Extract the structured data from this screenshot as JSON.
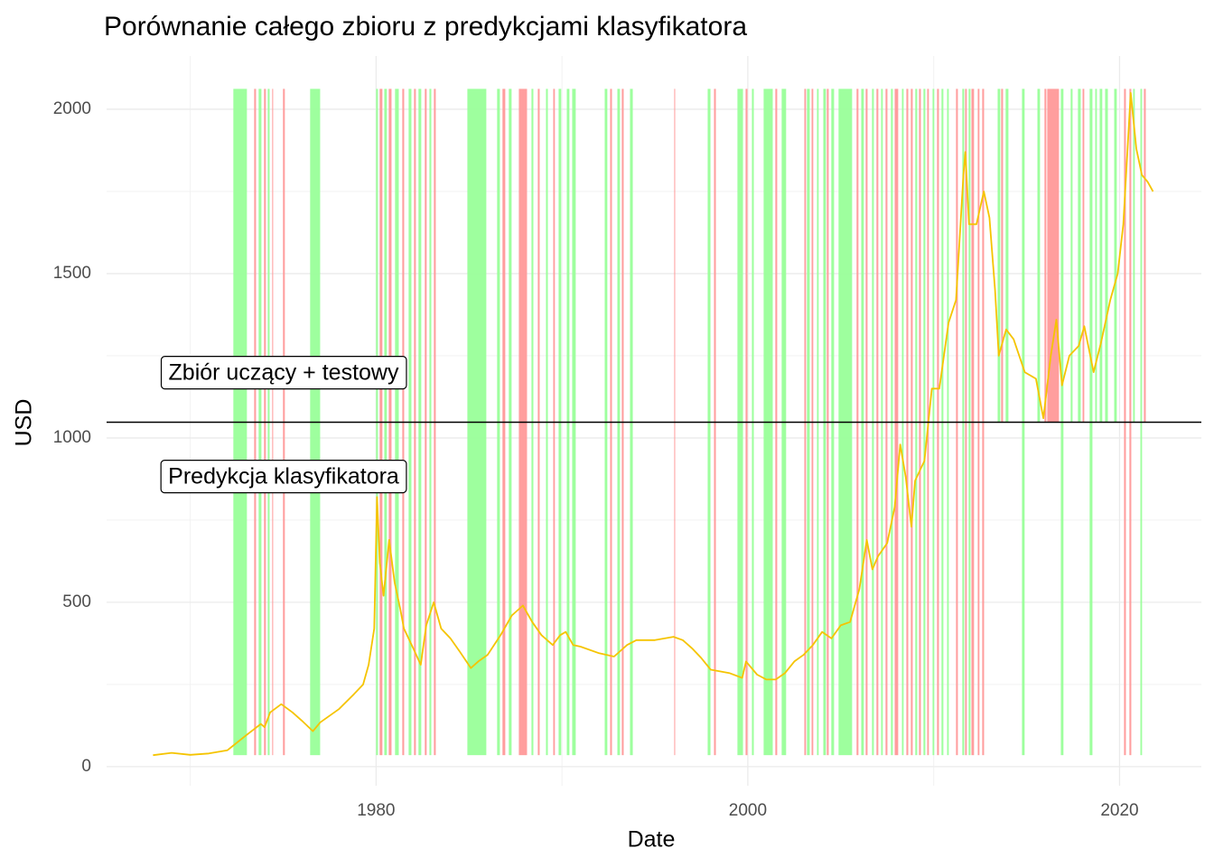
{
  "chart_data": {
    "type": "line",
    "title": "Porównanie całego zbioru z predykcjami klasyfikatora",
    "x_label": "Date",
    "y_label": "USD",
    "annotations": [
      "Zbiór uczący + testowy",
      "Predykcja klasyfikatora"
    ],
    "xlim": [
      1965.5,
      2024.4
    ],
    "xticks": [
      1980,
      2000,
      2020
    ],
    "xminor": [
      1970,
      1990,
      2010
    ],
    "ylim": [
      -58,
      2162
    ],
    "yticks": [
      0,
      500,
      1000,
      1500,
      2000
    ],
    "yminor": [
      250,
      750,
      1250,
      1750
    ],
    "grid": true,
    "hline": 1048,
    "band_top": 2062,
    "band_bottom": 35,
    "series": [
      {
        "color": "#f5c400",
        "x": [
          1968.0,
          1969.0,
          1970.0,
          1971.0,
          1972.0,
          1973.0,
          1973.8,
          1974.0,
          1974.3,
          1974.9,
          1975.5,
          1976.0,
          1976.6,
          1977.0,
          1978.0,
          1978.8,
          1979.3,
          1979.6,
          1979.9,
          1980.05,
          1980.2,
          1980.4,
          1980.7,
          1981.0,
          1981.3,
          1981.5,
          1982.0,
          1982.4,
          1982.7,
          1983.1,
          1983.5,
          1984.0,
          1984.5,
          1985.1,
          1985.5,
          1986.0,
          1986.7,
          1987.3,
          1987.9,
          1988.4,
          1988.9,
          1989.5,
          1989.9,
          1990.2,
          1990.6,
          1991.0,
          1992.0,
          1992.8,
          1993.5,
          1994.0,
          1995.0,
          1996.0,
          1996.5,
          1997.0,
          1997.5,
          1998.0,
          1999.0,
          1999.7,
          1999.9,
          2000.5,
          2001.0,
          2001.5,
          2002.0,
          2002.5,
          2003.0,
          2003.5,
          2004.0,
          2004.5,
          2005.0,
          2005.5,
          2006.0,
          2006.4,
          2006.7,
          2007.0,
          2007.5,
          2007.9,
          2008.2,
          2008.5,
          2008.8,
          2009.0,
          2009.5,
          2009.9,
          2010.3,
          2010.8,
          2011.2,
          2011.6,
          2011.7,
          2011.9,
          2012.3,
          2012.7,
          2013.0,
          2013.3,
          2013.5,
          2013.9,
          2014.3,
          2014.9,
          2015.5,
          2015.9,
          2016.3,
          2016.6,
          2016.9,
          2017.3,
          2017.8,
          2018.1,
          2018.6,
          2019.0,
          2019.5,
          2019.9,
          2020.2,
          2020.6,
          2020.9,
          2021.2,
          2021.5,
          2021.8
        ],
        "values": [
          35,
          42,
          36,
          40,
          50,
          95,
          130,
          120,
          165,
          190,
          165,
          140,
          108,
          135,
          175,
          220,
          250,
          310,
          420,
          820,
          620,
          520,
          690,
          560,
          480,
          420,
          360,
          310,
          430,
          500,
          420,
          390,
          350,
          300,
          320,
          340,
          400,
          460,
          490,
          440,
          400,
          370,
          400,
          410,
          370,
          365,
          345,
          335,
          370,
          385,
          385,
          395,
          385,
          360,
          330,
          295,
          285,
          270,
          320,
          280,
          265,
          265,
          285,
          320,
          340,
          370,
          410,
          390,
          430,
          440,
          540,
          690,
          600,
          640,
          680,
          790,
          980,
          880,
          730,
          870,
          930,
          1150,
          1150,
          1350,
          1420,
          1800,
          1870,
          1650,
          1650,
          1750,
          1670,
          1450,
          1250,
          1330,
          1300,
          1200,
          1180,
          1060,
          1250,
          1360,
          1160,
          1250,
          1280,
          1340,
          1200,
          1290,
          1420,
          1500,
          1650,
          2050,
          1880,
          1800,
          1780,
          1750
        ]
      }
    ],
    "bands": [
      [
        1972.32,
        1973.05,
        "#99ff99",
        true
      ],
      [
        1973.44,
        1973.54,
        "#ff9999",
        true
      ],
      [
        1973.68,
        1973.83,
        "#99ff99",
        true
      ],
      [
        1973.97,
        1974.07,
        "#ff9999",
        true
      ],
      [
        1974.17,
        1974.27,
        "#99ff99",
        true
      ],
      [
        1974.41,
        1974.46,
        "#ff9999",
        true
      ],
      [
        1974.99,
        1975.09,
        "#ff9999",
        true
      ],
      [
        1976.45,
        1976.99,
        "#99ff99",
        true
      ],
      [
        1980.0,
        1980.1,
        "#99ff99",
        true
      ],
      [
        1980.19,
        1980.34,
        "#ff9999",
        true
      ],
      [
        1980.44,
        1980.58,
        "#99ff99",
        true
      ],
      [
        1980.68,
        1980.83,
        "#ff9999",
        true
      ],
      [
        1981.02,
        1981.22,
        "#99ff99",
        true
      ],
      [
        1981.41,
        1981.51,
        "#ff9999",
        true
      ],
      [
        1981.75,
        1981.9,
        "#99ff99",
        true
      ],
      [
        1982.04,
        1982.14,
        "#ff9999",
        true
      ],
      [
        1982.28,
        1982.43,
        "#99ff99",
        true
      ],
      [
        1982.62,
        1982.72,
        "#ff9999",
        true
      ],
      [
        1982.87,
        1982.97,
        "#99ff99",
        true
      ],
      [
        1983.11,
        1983.21,
        "#ff9999",
        true
      ],
      [
        1984.91,
        1985.93,
        "#99ff99",
        true
      ],
      [
        1986.51,
        1986.66,
        "#99ff99",
        true
      ],
      [
        1986.8,
        1986.95,
        "#ff9999",
        true
      ],
      [
        1987.14,
        1987.29,
        "#99ff99",
        true
      ],
      [
        1987.68,
        1988.12,
        "#ff9999",
        true
      ],
      [
        1988.36,
        1988.46,
        "#99ff99",
        true
      ],
      [
        1988.7,
        1988.8,
        "#ff9999",
        true
      ],
      [
        1989.14,
        1989.24,
        "#99ff99",
        true
      ],
      [
        1989.53,
        1989.62,
        "#ff9999",
        true
      ],
      [
        1989.82,
        1989.96,
        "#99ff99",
        true
      ],
      [
        1990.26,
        1990.4,
        "#99ff99",
        true
      ],
      [
        1990.55,
        1990.74,
        "#99ff99",
        true
      ],
      [
        1992.3,
        1992.44,
        "#99ff99",
        true
      ],
      [
        1992.59,
        1992.69,
        "#ff9999",
        true
      ],
      [
        1992.98,
        1993.12,
        "#99ff99",
        true
      ],
      [
        1993.22,
        1993.32,
        "#ff9999",
        true
      ],
      [
        1993.66,
        1993.81,
        "#99ff99",
        true
      ],
      [
        1996.04,
        1996.09,
        "#ff9999",
        true
      ],
      [
        1997.84,
        1997.99,
        "#99ff99",
        true
      ],
      [
        1998.18,
        1998.28,
        "#ff9999",
        true
      ],
      [
        1999.44,
        1999.74,
        "#99ff99",
        true
      ],
      [
        1999.88,
        1999.98,
        "#ff9999",
        true
      ],
      [
        2000.22,
        2000.32,
        "#99ff99",
        true
      ],
      [
        2000.85,
        2001.34,
        "#99ff99",
        true
      ],
      [
        2001.48,
        2001.58,
        "#ff9999",
        true
      ],
      [
        2001.82,
        2002.06,
        "#99ff99",
        true
      ],
      [
        2003.04,
        2003.13,
        "#ff9999",
        true
      ],
      [
        2003.18,
        2003.33,
        "#99ff99",
        true
      ],
      [
        2003.43,
        2003.52,
        "#ff9999",
        true
      ],
      [
        2003.72,
        2003.81,
        "#99ff99",
        true
      ],
      [
        2004.06,
        2004.2,
        "#99ff99",
        true
      ],
      [
        2004.25,
        2004.35,
        "#ff9999",
        true
      ],
      [
        2004.49,
        2004.64,
        "#99ff99",
        true
      ],
      [
        2004.88,
        2005.61,
        "#99ff99",
        true
      ],
      [
        2005.85,
        2005.95,
        "#ff9999",
        true
      ],
      [
        2006.1,
        2006.24,
        "#99ff99",
        true
      ],
      [
        2006.34,
        2006.44,
        "#ff9999",
        true
      ],
      [
        2006.68,
        2006.78,
        "#99ff99",
        true
      ],
      [
        2006.92,
        2007.02,
        "#ff9999",
        true
      ],
      [
        2007.17,
        2007.26,
        "#99ff99",
        true
      ],
      [
        2007.41,
        2007.51,
        "#ff9999",
        true
      ],
      [
        2007.7,
        2007.8,
        "#99ff99",
        true
      ],
      [
        2007.9,
        2008.09,
        "#ff9999",
        true
      ],
      [
        2008.29,
        2008.38,
        "#99ff99",
        true
      ],
      [
        2008.53,
        2008.63,
        "#ff9999",
        true
      ],
      [
        2008.77,
        2008.87,
        "#ff9999",
        true
      ],
      [
        2009.01,
        2009.11,
        "#99ff99",
        true
      ],
      [
        2009.21,
        2009.31,
        "#ff9999",
        true
      ],
      [
        2009.45,
        2009.55,
        "#99ff99",
        true
      ],
      [
        2009.65,
        2009.74,
        "#ff9999",
        true
      ],
      [
        2009.94,
        2010.03,
        "#99ff99",
        true
      ],
      [
        2010.18,
        2010.28,
        "#ff9999",
        true
      ],
      [
        2010.42,
        2010.52,
        "#99ff99",
        true
      ],
      [
        2010.72,
        2010.81,
        "#99ff99",
        true
      ],
      [
        2011.2,
        2011.3,
        "#ff9999",
        true
      ],
      [
        2011.54,
        2011.64,
        "#99ff99",
        true
      ],
      [
        2011.69,
        2011.78,
        "#ff9999",
        true
      ],
      [
        2011.88,
        2011.98,
        "#99ff99",
        true
      ],
      [
        2012.03,
        2012.17,
        "#ff9999",
        true
      ],
      [
        2012.37,
        2012.46,
        "#ff9999",
        true
      ],
      [
        2012.61,
        2012.71,
        "#ff9999",
        true
      ],
      [
        2013.44,
        2013.58,
        "#99ff99",
        false
      ],
      [
        2013.63,
        2013.73,
        "#ff9999",
        false
      ],
      [
        2013.87,
        2014.02,
        "#99ff99",
        false
      ],
      [
        2014.75,
        2014.89,
        "#99ff99",
        true
      ],
      [
        2015.58,
        2015.72,
        "#99ff99",
        false
      ],
      [
        2015.96,
        2016.06,
        "#ff9999",
        false
      ],
      [
        2016.11,
        2016.74,
        "#ff9999",
        false
      ],
      [
        2016.84,
        2016.98,
        "#99ff99",
        true
      ],
      [
        2017.37,
        2017.47,
        "#99ff99",
        false
      ],
      [
        2017.76,
        2017.91,
        "#99ff99",
        false
      ],
      [
        2018.01,
        2018.1,
        "#ff9999",
        false
      ],
      [
        2018.39,
        2018.54,
        "#99ff99",
        true
      ],
      [
        2018.69,
        2018.78,
        "#99ff99",
        false
      ],
      [
        2018.93,
        2019.07,
        "#99ff99",
        false
      ],
      [
        2019.22,
        2019.37,
        "#99ff99",
        false
      ],
      [
        2019.71,
        2019.85,
        "#99ff99",
        false
      ],
      [
        2020.24,
        2020.34,
        "#ff9999",
        true
      ],
      [
        2020.53,
        2020.63,
        "#ff9999",
        true
      ],
      [
        2020.73,
        2020.82,
        "#99ff99",
        false
      ],
      [
        2021.12,
        2021.21,
        "#99ff99",
        true
      ],
      [
        2021.31,
        2021.41,
        "#ff9999",
        false
      ]
    ]
  }
}
